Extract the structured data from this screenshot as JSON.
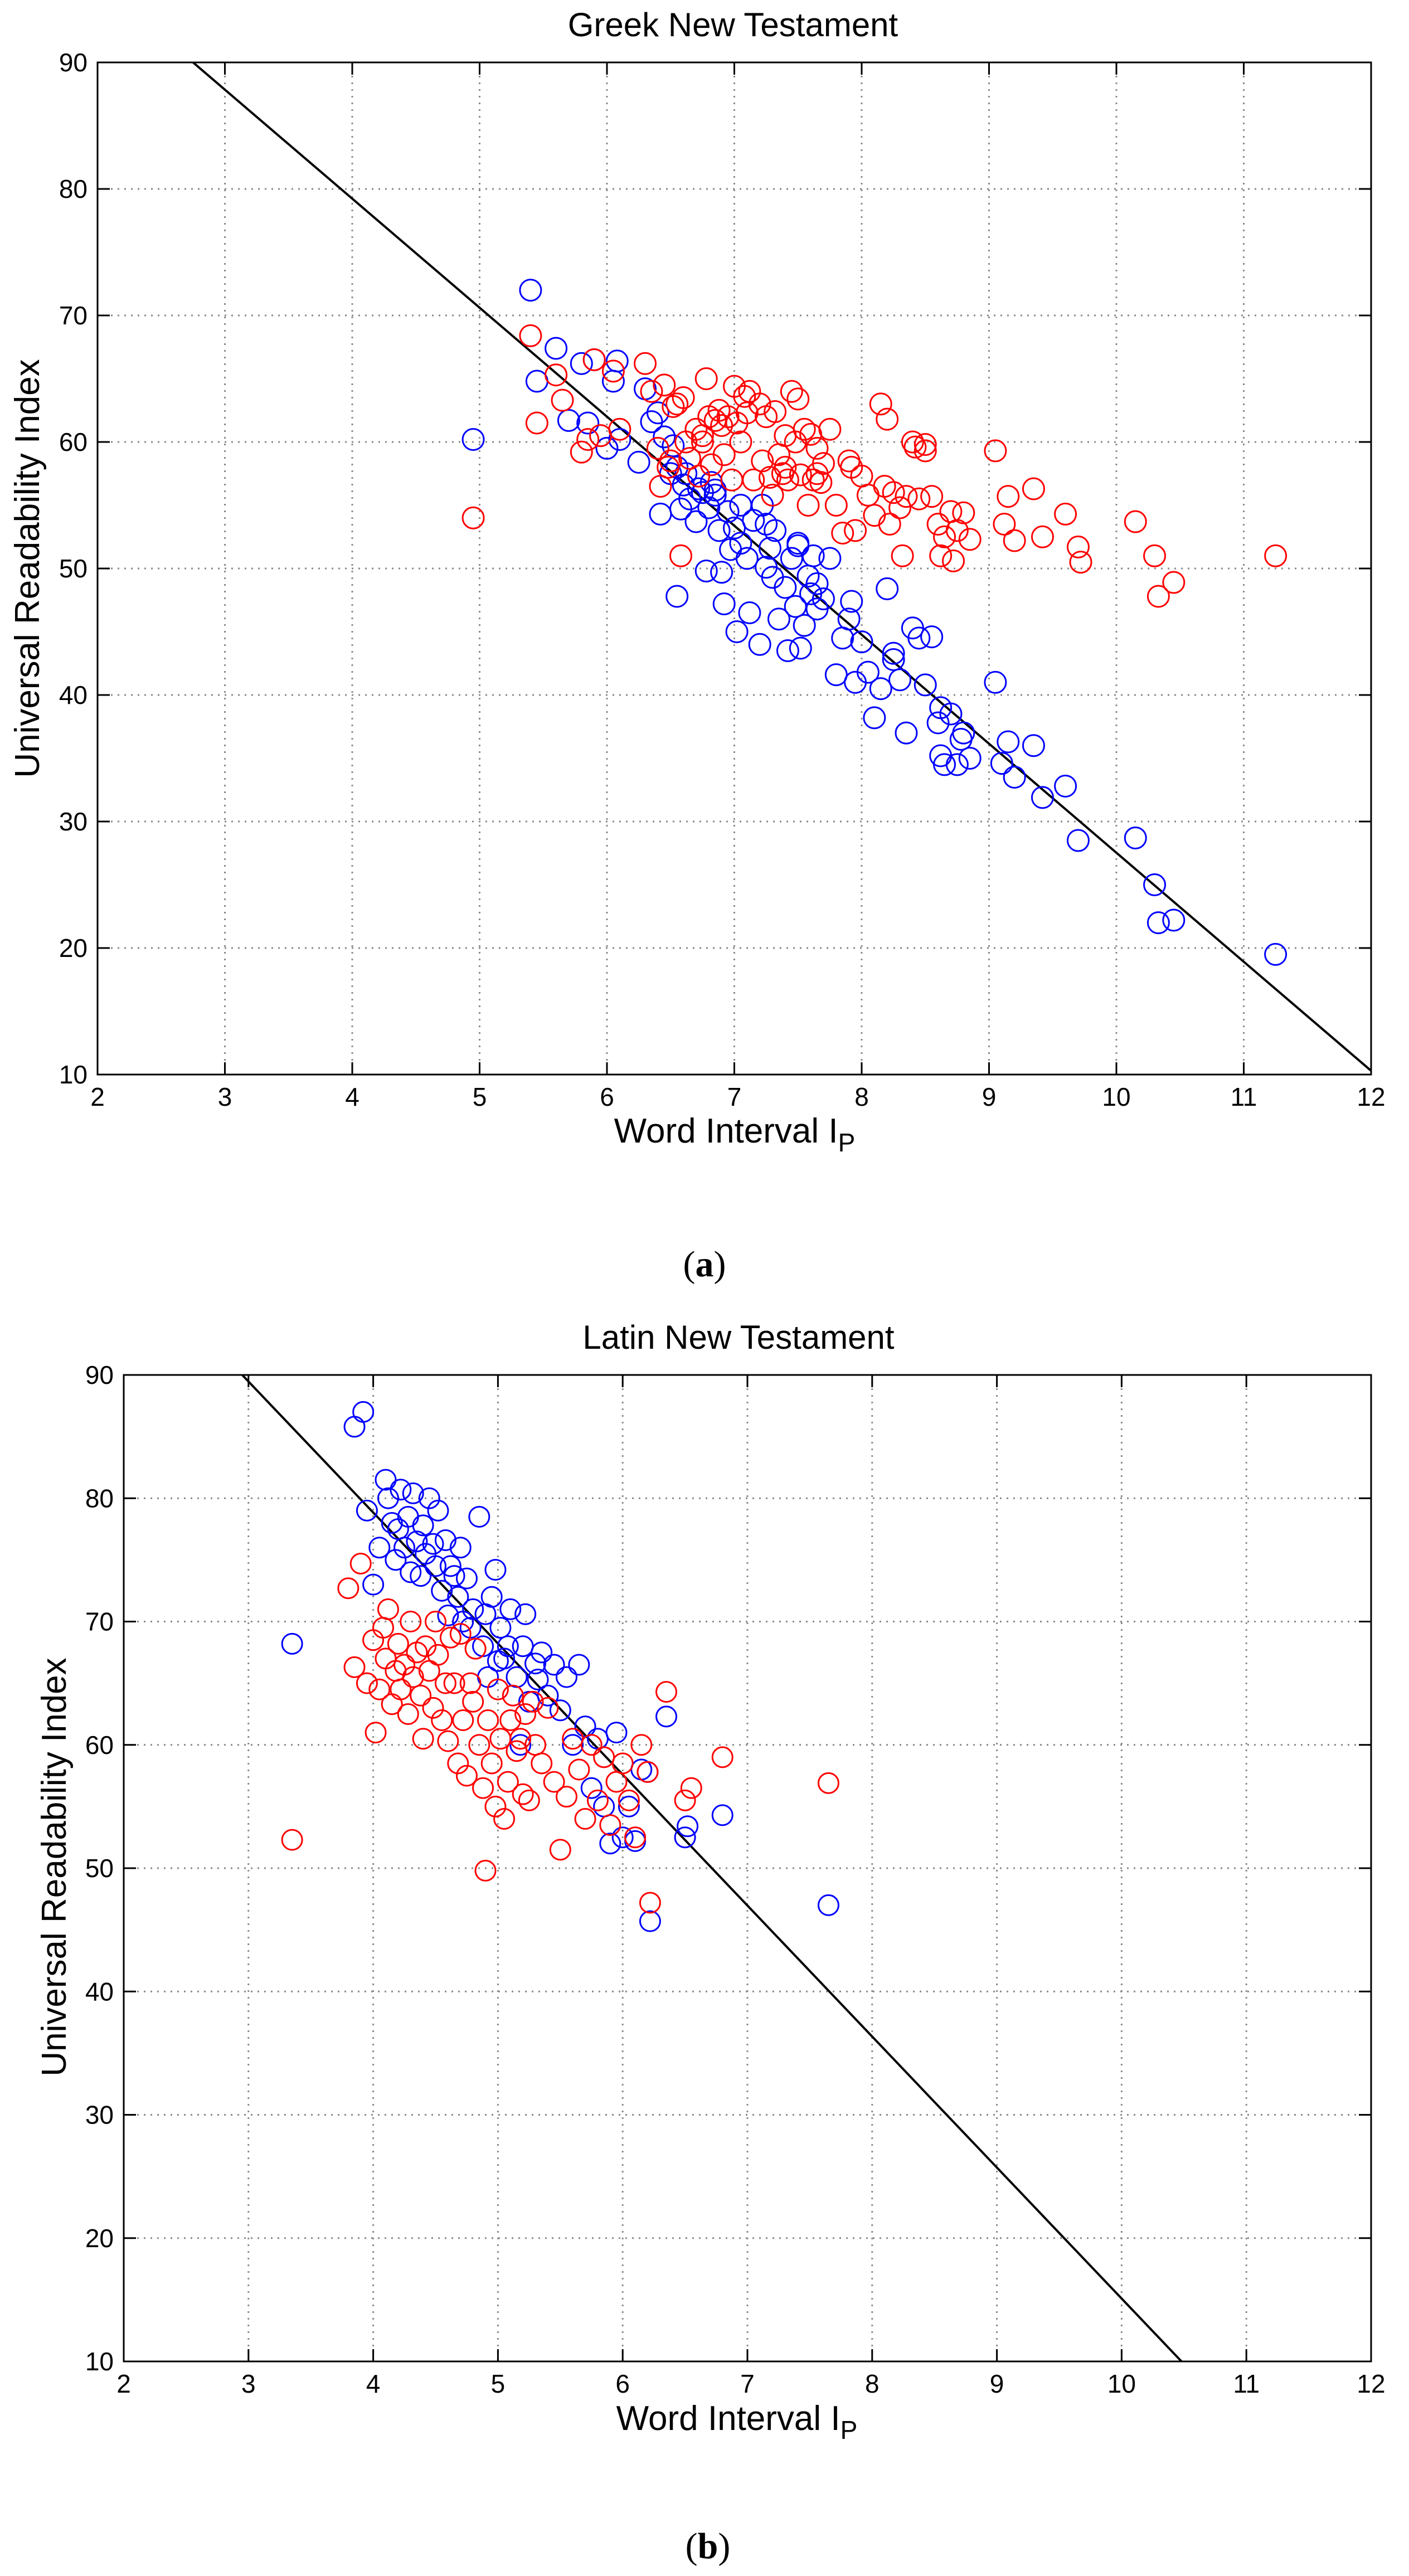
{
  "chart_data": [
    {
      "type": "scatter",
      "title": "Greek New Testament",
      "xlabel": "Word Interval I",
      "xlabel_subscript": "P",
      "ylabel": "Universal Readability Index",
      "xlim": [
        2,
        12
      ],
      "ylim": [
        10,
        90
      ],
      "xticks": [
        2,
        3,
        4,
        5,
        6,
        7,
        8,
        9,
        10,
        11,
        12
      ],
      "yticks": [
        10,
        20,
        30,
        40,
        50,
        60,
        70,
        80,
        90
      ],
      "grid": true,
      "caption_open": "(",
      "caption_letter": "a",
      "caption_close": ")",
      "fit_line": {
        "x": [
          2.75,
          12
        ],
        "y": [
          90,
          10.3
        ]
      },
      "series": [
        {
          "color": "#0000ff",
          "marker": "circle-open",
          "x": [
            4.95,
            5.4,
            5.45,
            5.6,
            5.7,
            5.8,
            5.85,
            5.9,
            6.0,
            6.05,
            6.08,
            6.1,
            6.25,
            6.3,
            6.35,
            6.4,
            6.42,
            6.45,
            6.5,
            6.52,
            6.55,
            6.58,
            6.6,
            6.62,
            6.65,
            6.7,
            6.72,
            6.75,
            6.78,
            6.8,
            6.82,
            6.85,
            6.88,
            6.9,
            6.92,
            6.95,
            6.97,
            7.0,
            7.02,
            7.05,
            7.1,
            7.12,
            7.15,
            7.2,
            7.22,
            7.25,
            7.28,
            7.3,
            7.32,
            7.35,
            7.4,
            7.42,
            7.45,
            7.48,
            7.5,
            7.52,
            7.55,
            7.58,
            7.6,
            7.62,
            7.65,
            7.7,
            7.75,
            7.8,
            7.85,
            7.9,
            7.92,
            7.95,
            8.0,
            8.05,
            8.1,
            8.15,
            8.2,
            8.25,
            8.3,
            8.35,
            8.4,
            8.45,
            8.5,
            8.55,
            8.6,
            8.62,
            8.65,
            8.7,
            8.75,
            8.8,
            8.85,
            9.05,
            9.1,
            9.15,
            9.2,
            9.35,
            9.42,
            9.6,
            9.7,
            10.15,
            10.3,
            10.33,
            10.45,
            11.25,
            6.55,
            6.85,
            7.05,
            7.25,
            7.5,
            7.65,
            8.25,
            8.62,
            8.78
          ],
          "y": [
            60.2,
            72.0,
            64.8,
            67.4,
            61.7,
            66.2,
            61.5,
            66.5,
            59.5,
            64.8,
            66.4,
            60.2,
            58.4,
            64.2,
            61.6,
            62.3,
            54.3,
            60.4,
            57.5,
            59.7,
            58.0,
            54.7,
            56.6,
            57.5,
            55.5,
            53.7,
            56.3,
            56.0,
            49.8,
            54.8,
            56.8,
            55.8,
            53.0,
            49.7,
            47.2,
            54.5,
            51.5,
            53.2,
            45.0,
            52.0,
            50.8,
            46.5,
            53.8,
            44.0,
            55.0,
            50.1,
            51.6,
            49.3,
            53.0,
            46.0,
            48.5,
            43.5,
            50.8,
            47.0,
            51.8,
            43.7,
            45.5,
            49.4,
            48.0,
            51.0,
            46.8,
            47.6,
            50.8,
            41.6,
            44.5,
            46.0,
            47.4,
            41.0,
            44.2,
            41.8,
            38.2,
            40.5,
            48.4,
            43.3,
            41.2,
            37.0,
            45.3,
            44.5,
            40.8,
            44.6,
            37.8,
            35.2,
            34.5,
            38.5,
            34.5,
            37.0,
            35.0,
            41.0,
            34.6,
            36.3,
            33.5,
            36.0,
            31.9,
            32.8,
            28.5,
            28.7,
            25.0,
            22.0,
            22.2,
            19.5,
            47.8,
            56.2,
            55.0,
            53.5,
            52.0,
            48.8,
            42.8,
            39.0,
            36.5
          ]
        },
        {
          "color": "#ff0000",
          "marker": "circle-open",
          "x": [
            4.95,
            5.4,
            5.45,
            5.6,
            5.65,
            5.8,
            5.85,
            5.9,
            5.95,
            6.05,
            6.1,
            6.3,
            6.35,
            6.4,
            6.42,
            6.45,
            6.48,
            6.5,
            6.55,
            6.58,
            6.6,
            6.62,
            6.65,
            6.7,
            6.72,
            6.75,
            6.78,
            6.8,
            6.82,
            6.85,
            6.88,
            6.9,
            6.92,
            6.95,
            6.98,
            7.0,
            7.02,
            7.05,
            7.08,
            7.1,
            7.15,
            7.2,
            7.22,
            7.25,
            7.28,
            7.3,
            7.32,
            7.35,
            7.38,
            7.4,
            7.42,
            7.45,
            7.48,
            7.5,
            7.52,
            7.55,
            7.58,
            7.6,
            7.62,
            7.65,
            7.68,
            7.7,
            7.75,
            7.8,
            7.85,
            7.9,
            7.92,
            7.95,
            8.0,
            8.05,
            8.1,
            8.15,
            8.2,
            8.22,
            8.25,
            8.3,
            8.32,
            8.35,
            8.4,
            8.42,
            8.45,
            8.5,
            8.55,
            8.6,
            8.62,
            8.65,
            8.7,
            8.72,
            8.75,
            8.8,
            8.85,
            9.05,
            9.12,
            9.15,
            9.2,
            9.35,
            9.42,
            9.6,
            9.7,
            9.72,
            10.15,
            10.3,
            10.33,
            10.45,
            11.25,
            6.52,
            6.75,
            7.12,
            7.4,
            7.65,
            8.18,
            8.5
          ],
          "y": [
            54.0,
            68.4,
            61.5,
            65.3,
            63.3,
            59.2,
            60.2,
            66.5,
            60.5,
            65.6,
            61.0,
            66.2,
            64.0,
            59.5,
            56.5,
            64.5,
            58.0,
            58.5,
            63.0,
            51.0,
            63.5,
            60.0,
            58.7,
            61.0,
            57.3,
            60.0,
            65.0,
            62.0,
            58.2,
            61.7,
            62.5,
            61.3,
            59.0,
            62.0,
            57.0,
            64.4,
            61.5,
            60.0,
            63.6,
            62.3,
            57.0,
            63.0,
            58.5,
            62.0,
            57.2,
            55.8,
            62.4,
            59.0,
            57.5,
            60.5,
            57.0,
            64.0,
            60.0,
            63.4,
            57.4,
            61.0,
            55.0,
            60.6,
            57.0,
            59.5,
            56.8,
            58.3,
            61.0,
            55.0,
            52.8,
            58.5,
            58.0,
            53.0,
            57.3,
            55.8,
            54.2,
            63.0,
            61.8,
            53.5,
            56.0,
            54.8,
            51.0,
            55.7,
            60.0,
            59.6,
            55.5,
            59.8,
            55.7,
            53.5,
            51.0,
            52.5,
            54.5,
            50.6,
            53.0,
            54.4,
            52.3,
            59.3,
            53.5,
            55.7,
            52.2,
            56.3,
            52.5,
            54.3,
            51.7,
            50.5,
            53.7,
            51.0,
            47.8,
            48.9,
            51.0,
            62.8,
            60.5,
            64.0,
            58.0,
            57.5,
            56.5,
            59.3
          ]
        }
      ]
    },
    {
      "type": "scatter",
      "title": "Latin New Testament",
      "xlabel": "Word Interval I",
      "xlabel_subscript": "P",
      "ylabel": "Universal Readability Index",
      "xlim": [
        2,
        12
      ],
      "ylim": [
        10,
        90
      ],
      "xticks": [
        2,
        3,
        4,
        5,
        6,
        7,
        8,
        9,
        10,
        11,
        12
      ],
      "yticks": [
        10,
        20,
        30,
        40,
        50,
        60,
        70,
        80,
        90
      ],
      "grid": true,
      "caption_open": "(",
      "caption_letter": "b",
      "caption_close": ")",
      "fit_line": {
        "x": [
          2.95,
          10.48
        ],
        "y": [
          90,
          10
        ]
      },
      "series": [
        {
          "color": "#0000ff",
          "marker": "circle-open",
          "x": [
            3.35,
            3.85,
            3.92,
            3.95,
            4.0,
            4.05,
            4.1,
            4.12,
            4.15,
            4.18,
            4.2,
            4.22,
            4.25,
            4.28,
            4.3,
            4.32,
            4.35,
            4.38,
            4.4,
            4.42,
            4.45,
            4.48,
            4.5,
            4.52,
            4.55,
            4.58,
            4.6,
            4.62,
            4.65,
            4.68,
            4.7,
            4.72,
            4.75,
            4.78,
            4.8,
            4.85,
            4.88,
            4.9,
            4.92,
            4.95,
            4.98,
            5.0,
            5.02,
            5.05,
            5.08,
            5.1,
            5.15,
            5.18,
            5.2,
            5.22,
            5.25,
            5.3,
            5.32,
            5.35,
            5.4,
            5.45,
            5.5,
            5.55,
            5.6,
            5.65,
            5.7,
            5.75,
            5.8,
            5.85,
            5.9,
            5.95,
            6.0,
            6.05,
            6.1,
            6.15,
            6.2,
            6.35,
            6.5,
            6.52,
            6.8,
            7.65,
            6.22
          ],
          "y": [
            68.2,
            85.8,
            87.0,
            79.0,
            73.0,
            76.0,
            81.5,
            80.0,
            78.0,
            75.0,
            77.5,
            80.7,
            76.0,
            78.5,
            74.0,
            80.4,
            76.5,
            73.7,
            77.8,
            75.5,
            80.0,
            76.3,
            74.5,
            79.0,
            72.5,
            76.6,
            70.5,
            74.5,
            73.7,
            72.0,
            76.0,
            70.0,
            73.5,
            69.5,
            71.0,
            78.5,
            68.0,
            70.6,
            65.5,
            72.0,
            74.2,
            66.8,
            69.5,
            67.0,
            68.0,
            71.0,
            65.5,
            60.0,
            68.0,
            70.6,
            63.5,
            66.6,
            65.3,
            67.5,
            64.0,
            66.5,
            62.8,
            65.5,
            60.0,
            66.5,
            61.5,
            56.5,
            60.5,
            55.0,
            52.0,
            61.0,
            52.5,
            55.0,
            52.2,
            58.0,
            57.8,
            62.3,
            52.5,
            53.4,
            54.3,
            47.0,
            45.7
          ]
        },
        {
          "color": "#ff0000",
          "marker": "circle-open",
          "x": [
            3.35,
            3.8,
            3.85,
            3.9,
            3.95,
            4.0,
            4.02,
            4.05,
            4.08,
            4.1,
            4.12,
            4.15,
            4.18,
            4.2,
            4.22,
            4.25,
            4.28,
            4.3,
            4.32,
            4.35,
            4.38,
            4.4,
            4.42,
            4.45,
            4.48,
            4.5,
            4.52,
            4.55,
            4.58,
            4.6,
            4.62,
            4.65,
            4.68,
            4.7,
            4.72,
            4.75,
            4.78,
            4.8,
            4.82,
            4.85,
            4.88,
            4.9,
            4.92,
            4.95,
            4.98,
            5.0,
            5.02,
            5.05,
            5.08,
            5.1,
            5.12,
            5.15,
            5.18,
            5.2,
            5.22,
            5.25,
            5.28,
            5.3,
            5.35,
            5.4,
            5.45,
            5.5,
            5.55,
            5.6,
            5.65,
            5.7,
            5.75,
            5.8,
            5.85,
            5.9,
            5.95,
            6.0,
            6.05,
            6.1,
            6.15,
            6.2,
            6.22,
            6.35,
            6.5,
            6.55,
            6.8,
            7.65
          ],
          "y": [
            52.3,
            72.7,
            66.3,
            74.7,
            65.0,
            68.5,
            61.0,
            64.5,
            69.5,
            67.0,
            71.0,
            63.3,
            66.0,
            68.2,
            64.5,
            66.5,
            62.5,
            70.0,
            65.5,
            67.5,
            64.0,
            60.5,
            68.0,
            66.0,
            63.0,
            70.0,
            67.3,
            62.0,
            65.0,
            60.3,
            68.7,
            65.0,
            58.5,
            69.0,
            62.0,
            57.5,
            65.0,
            63.5,
            67.8,
            60.0,
            56.5,
            49.8,
            62.0,
            58.5,
            55.0,
            64.5,
            60.5,
            54.0,
            57.0,
            62.0,
            64.0,
            59.5,
            60.5,
            56.0,
            62.5,
            55.5,
            63.5,
            60.0,
            58.5,
            63.0,
            57.0,
            51.5,
            55.8,
            60.5,
            58.0,
            54.0,
            60.0,
            55.5,
            59.0,
            53.5,
            57.0,
            58.5,
            55.5,
            52.5,
            60.0,
            57.8,
            47.2,
            64.3,
            55.5,
            56.5,
            59.0,
            56.9
          ]
        }
      ]
    }
  ]
}
